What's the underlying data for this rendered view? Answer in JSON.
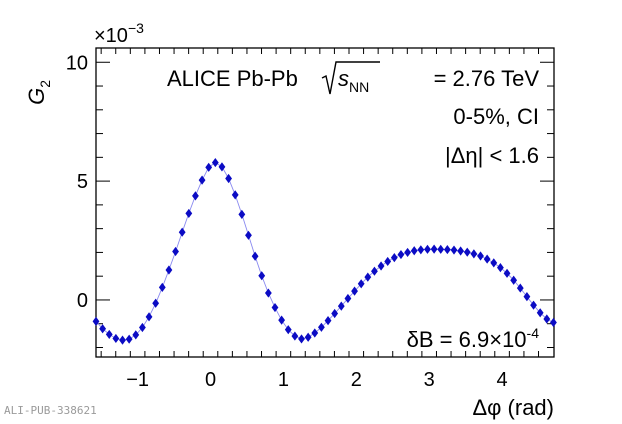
{
  "chart_data": {
    "type": "scatter",
    "title": "",
    "xlabel": "Δφ (rad)",
    "ylabel": "G",
    "ylabel_sub": "2",
    "y_multiplier": "×10",
    "y_multiplier_exp": "−3",
    "xlim": [
      -1.5708,
      4.7124
    ],
    "ylim": [
      -2.4,
      10.6
    ],
    "x_ticks": [
      -1,
      0,
      1,
      2,
      3,
      4
    ],
    "x_tick_labels": [
      "−1",
      "0",
      "1",
      "2",
      "3",
      "4"
    ],
    "y_ticks": [
      0,
      5,
      10
    ],
    "y_tick_labels": [
      "0",
      "5",
      "10"
    ],
    "grid": false,
    "annotations": {
      "line1_prefix": "ALICE Pb-Pb",
      "line1_s": "s",
      "line1_sub": "NN",
      "line1_suffix": "= 2.76 TeV",
      "line2": "0-5%, CI",
      "line3": "|Δη| < 1.6",
      "line4_prefix": "δB = 6.9×10",
      "line4_exp": "-4"
    },
    "series": [
      {
        "name": "G2",
        "marker": "diamond",
        "color": "#0b0bc4",
        "line_color": "#8a8af0",
        "x": [
          -1.5708,
          -1.4799,
          -1.3889,
          -1.298,
          -1.207,
          -1.1161,
          -1.0251,
          -0.9342,
          -0.8432,
          -0.7523,
          -0.6613,
          -0.5704,
          -0.4794,
          -0.3885,
          -0.2975,
          -0.2066,
          -0.1156,
          -0.0247,
          0.0663,
          0.1572,
          0.2482,
          0.3391,
          0.4301,
          0.521,
          0.612,
          0.7029,
          0.7939,
          0.8848,
          0.9758,
          1.0667,
          1.1577,
          1.2486,
          1.3396,
          1.4305,
          1.5215,
          1.6124,
          1.7034,
          1.7943,
          1.8853,
          1.9762,
          2.0672,
          2.1581,
          2.2491,
          2.34,
          2.431,
          2.5219,
          2.6129,
          2.7038,
          2.7948,
          2.8857,
          2.9767,
          3.0676,
          3.1586,
          3.2495,
          3.3405,
          3.4314,
          3.5224,
          3.6133,
          3.7043,
          3.7952,
          3.8862,
          3.9771,
          4.0681,
          4.159,
          4.25,
          4.3409,
          4.4319,
          4.5228,
          4.6138,
          4.7047
        ],
        "values": [
          -0.9,
          -1.21,
          -1.45,
          -1.62,
          -1.69,
          -1.65,
          -1.47,
          -1.16,
          -0.71,
          -0.14,
          0.53,
          1.26,
          2.04,
          2.85,
          3.64,
          4.38,
          5.04,
          5.58,
          5.78,
          5.6,
          5.11,
          4.42,
          3.6,
          2.72,
          1.84,
          1.02,
          0.29,
          -0.32,
          -0.85,
          -1.25,
          -1.52,
          -1.64,
          -1.57,
          -1.39,
          -1.15,
          -0.87,
          -0.57,
          -0.26,
          0.06,
          0.37,
          0.68,
          0.96,
          1.21,
          1.43,
          1.62,
          1.78,
          1.91,
          2.0,
          2.07,
          2.11,
          2.13,
          2.14,
          2.13,
          2.12,
          2.1,
          2.06,
          2.01,
          1.94,
          1.85,
          1.72,
          1.56,
          1.36,
          1.12,
          0.83,
          0.5,
          0.14,
          -0.22,
          -0.54,
          -0.8,
          -0.95
        ]
      }
    ]
  },
  "watermark": "ALI-PUB-338621"
}
